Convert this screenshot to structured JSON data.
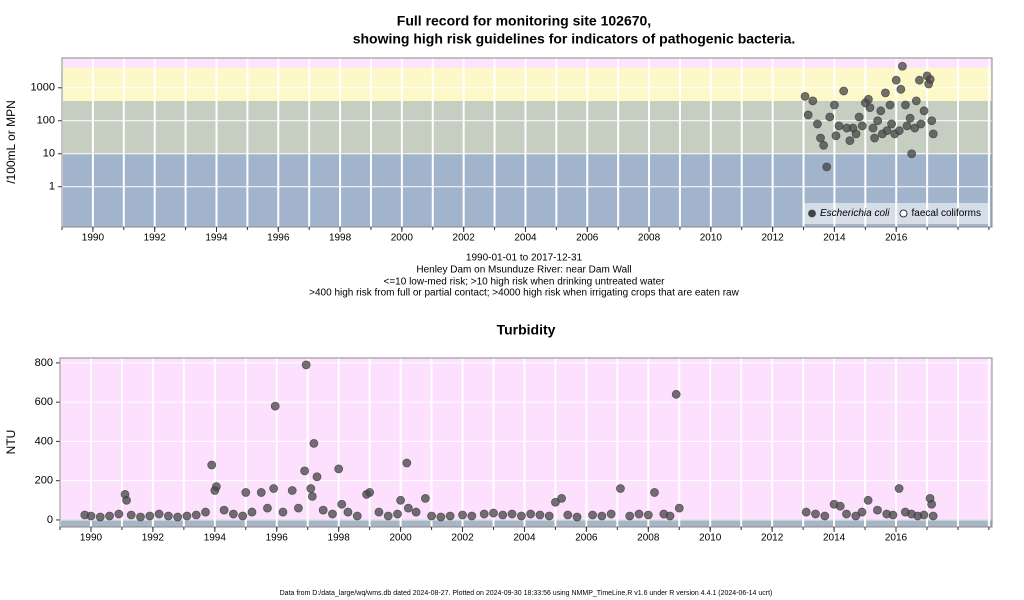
{
  "chart_data": [
    {
      "type": "scatter",
      "title": [
        "Full record for monitoring site 102670,",
        "showing high risk guidelines for indicators of pathogenic bacteria."
      ],
      "subtitle": [
        "1990-01-01 to 2017-12-31",
        "Henley Dam on Msunduze River: near Dam Wall",
        "<=10 low-med risk; >10 high risk when drinking untreated water",
        ">400 high risk from full or partial contact; >4000 high risk when irrigating crops that are eaten raw"
      ],
      "ylabel": "/100mL or MPN",
      "log_y": true,
      "xlim": [
        1989,
        2019.1
      ],
      "xticks": [
        1990,
        1992,
        1994,
        1996,
        1998,
        2000,
        2002,
        2004,
        2006,
        2008,
        2010,
        2012,
        2014,
        2016
      ],
      "xminorticks": [
        1989,
        1990,
        1991,
        1992,
        1993,
        1994,
        1995,
        1996,
        1997,
        1998,
        1999,
        2000,
        2001,
        2002,
        2003,
        2004,
        2005,
        2006,
        2007,
        2008,
        2009,
        2010,
        2011,
        2012,
        2013,
        2014,
        2015,
        2016,
        2017,
        2018,
        2019
      ],
      "ylim": [
        0.06,
        8000
      ],
      "yticks": [
        1,
        10,
        100,
        1000
      ],
      "grid": true,
      "bands": [
        {
          "from": 0.06,
          "to": 10,
          "color": "#a2b3cc"
        },
        {
          "from": 10,
          "to": 400,
          "color": "#c6cdc1"
        },
        {
          "from": 400,
          "to": 4000,
          "color": "#fdf8c8"
        },
        {
          "from": 4000,
          "to": 8000,
          "color": "#fde3fb"
        }
      ],
      "legend": "lower right",
      "series": [
        {
          "name": "Escherichia coli",
          "font_style": "italic",
          "marker": "filled",
          "color": "#444444",
          "x": [
            2013.05,
            2013.15,
            2013.3,
            2013.45,
            2013.55,
            2013.65,
            2013.75,
            2013.85,
            2014.0,
            2014.05,
            2014.15,
            2014.3,
            2014.4,
            2014.5,
            2014.6,
            2014.7,
            2014.8,
            2014.9,
            2015.0,
            2015.1,
            2015.15,
            2015.25,
            2015.3,
            2015.4,
            2015.5,
            2015.55,
            2015.65,
            2015.7,
            2015.8,
            2015.85,
            2015.95,
            2016.0,
            2016.1,
            2016.15,
            2016.2,
            2016.3,
            2016.35,
            2016.45,
            2016.5,
            2016.6,
            2016.65,
            2016.75,
            2016.8,
            2016.9,
            2017.0,
            2017.05,
            2017.1,
            2017.15,
            2017.2
          ],
          "values": [
            550,
            150,
            400,
            80,
            30,
            18,
            4,
            130,
            300,
            35,
            70,
            800,
            60,
            25,
            60,
            40,
            130,
            70,
            350,
            450,
            250,
            60,
            30,
            100,
            200,
            40,
            700,
            50,
            300,
            80,
            40,
            1700,
            50,
            900,
            4500,
            300,
            70,
            120,
            10,
            60,
            400,
            1700,
            80,
            200,
            2300,
            1300,
            1800,
            100,
            40
          ]
        },
        {
          "name": "faecal coliforms",
          "marker": "open",
          "color": "#000000",
          "x": [],
          "values": []
        }
      ]
    },
    {
      "type": "scatter",
      "title": [
        "Turbidity"
      ],
      "ylabel": "NTU",
      "log_y": false,
      "xlim": [
        1989,
        2019.1
      ],
      "xticks": [
        1990,
        1992,
        1994,
        1996,
        1998,
        2000,
        2002,
        2004,
        2006,
        2008,
        2010,
        2012,
        2014,
        2016
      ],
      "xminorticks": [
        1989,
        1990,
        1991,
        1992,
        1993,
        1994,
        1995,
        1996,
        1997,
        1998,
        1999,
        2000,
        2001,
        2002,
        2003,
        2004,
        2005,
        2006,
        2007,
        2008,
        2009,
        2010,
        2011,
        2012,
        2013,
        2014,
        2015,
        2016,
        2017,
        2018,
        2019
      ],
      "ylim": [
        -36,
        825
      ],
      "yticks": [
        0,
        200,
        400,
        600,
        800
      ],
      "grid": true,
      "bands": [
        {
          "from": -36,
          "to": 5,
          "color": "#a7b5c6"
        },
        {
          "from": 5,
          "to": 825,
          "color": "#fde0fd"
        }
      ],
      "series": [
        {
          "marker": "filled",
          "color": "#444444",
          "x": [
            1989.8,
            1990.0,
            1990.3,
            1990.6,
            1990.9,
            1991.1,
            1991.15,
            1991.3,
            1991.6,
            1991.9,
            1992.2,
            1992.5,
            1992.8,
            1993.1,
            1993.4,
            1993.7,
            1993.9,
            1994.0,
            1994.05,
            1994.3,
            1994.6,
            1994.9,
            1995.0,
            1995.2,
            1995.5,
            1995.7,
            1995.9,
            1995.95,
            1996.2,
            1996.5,
            1996.7,
            1996.9,
            1996.95,
            1997.1,
            1997.15,
            1997.2,
            1997.3,
            1997.5,
            1997.8,
            1998.0,
            1998.1,
            1998.3,
            1998.6,
            1998.9,
            1999.0,
            1999.3,
            1999.6,
            1999.9,
            2000.0,
            2000.2,
            2000.25,
            2000.5,
            2000.8,
            2001.0,
            2001.3,
            2001.6,
            2002.0,
            2002.3,
            2002.7,
            2003.0,
            2003.3,
            2003.6,
            2003.9,
            2004.2,
            2004.5,
            2004.8,
            2005.0,
            2005.2,
            2005.4,
            2005.7,
            2006.2,
            2006.5,
            2006.8,
            2007.1,
            2007.4,
            2007.7,
            2008.0,
            2008.2,
            2008.5,
            2008.7,
            2008.9,
            2009.0,
            2013.1,
            2013.4,
            2013.7,
            2014.0,
            2014.2,
            2014.4,
            2014.7,
            2014.9,
            2015.1,
            2015.4,
            2015.7,
            2015.9,
            2016.1,
            2016.3,
            2016.5,
            2016.7,
            2016.9,
            2017.1,
            2017.15,
            2017.2
          ],
          "values": [
            25,
            20,
            15,
            20,
            30,
            130,
            100,
            25,
            15,
            20,
            30,
            20,
            15,
            20,
            25,
            40,
            280,
            150,
            170,
            50,
            30,
            20,
            140,
            40,
            140,
            60,
            160,
            580,
            40,
            150,
            60,
            250,
            790,
            160,
            120,
            390,
            220,
            50,
            30,
            260,
            80,
            40,
            20,
            130,
            140,
            40,
            20,
            30,
            100,
            290,
            60,
            40,
            110,
            20,
            15,
            20,
            25,
            20,
            30,
            35,
            25,
            30,
            20,
            30,
            25,
            20,
            90,
            110,
            25,
            15,
            25,
            20,
            30,
            160,
            20,
            30,
            25,
            140,
            30,
            20,
            640,
            60,
            40,
            30,
            20,
            80,
            70,
            30,
            20,
            40,
            100,
            50,
            30,
            25,
            160,
            40,
            30,
            20,
            25,
            110,
            80,
            20
          ]
        }
      ]
    }
  ],
  "footer": "Data from D:/data_large/wq/wms.db dated 2024-08-27. Plotted on 2024-09-30 18:33:56 using NMMP_TimeLine.R v1.6 under R version 4.4.1 (2024-06-14 ucrt)"
}
